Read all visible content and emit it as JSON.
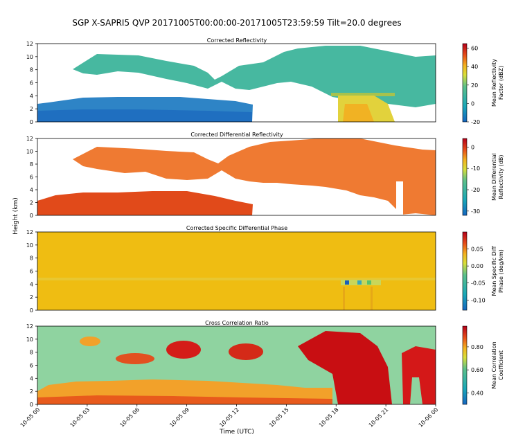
{
  "figure": {
    "title": "SGP X-SAPRI5 QVP 20171005T00:00:00-20171005T23:59:59 Tilt=20.0 degrees",
    "ylabel": "Height (km)",
    "xlabel": "Time (UTC)",
    "x_ticks": [
      "10-05 00",
      "10-05 03",
      "10-05 06",
      "10-05 09",
      "10-05 12",
      "10-05 15",
      "10-05 18",
      "10-05 21",
      "10-06 00"
    ]
  },
  "chart_data": [
    {
      "type": "heatmap",
      "title": "Corrected Reflectivity",
      "xlabel": "",
      "ylabel": "Height (km)",
      "xlim": [
        "2017-10-05T00:00",
        "2017-10-06T00:00"
      ],
      "ylim": [
        0,
        12
      ],
      "y_ticks": [
        0,
        2,
        4,
        6,
        8,
        10,
        12
      ],
      "grid": false,
      "colorbar": {
        "label": "Mean Reflectivity Factor (dBZ)",
        "range": [
          -20,
          65
        ],
        "ticks": [
          -20,
          0,
          20,
          40,
          60
        ]
      },
      "features": [
        {
          "desc": "low boundary layer echo",
          "time_start_h": 0,
          "time_end_h": 13,
          "height_km": [
            0,
            3.8
          ],
          "value_dBZ": -5
        },
        {
          "desc": "mid-level cloud layer",
          "time_start_h": 2.5,
          "time_end_h": 24,
          "height_km": [
            6,
            11
          ],
          "value_dBZ": 5
        },
        {
          "desc": "precipitation core with bright band",
          "time_start_h": 17.5,
          "time_end_h": 20.5,
          "height_km": [
            0,
            12
          ],
          "value_dBZ": 30,
          "bright_band_km": 4.2
        }
      ]
    },
    {
      "type": "heatmap",
      "title": "Corrected Differential Reflectivity",
      "xlabel": "",
      "ylabel": "Height (km)",
      "xlim": [
        "2017-10-05T00:00",
        "2017-10-06T00:00"
      ],
      "ylim": [
        0,
        12
      ],
      "y_ticks": [
        0,
        2,
        4,
        6,
        8,
        10,
        12
      ],
      "grid": false,
      "colorbar": {
        "label": "Mean Differential Reflectivity (dB)",
        "range": [
          -32,
          4
        ],
        "ticks": [
          -30,
          -20,
          -10,
          0
        ]
      },
      "features": [
        {
          "desc": "low layer",
          "time_start_h": 0,
          "time_end_h": 13,
          "height_km": [
            0,
            3.8
          ],
          "value_dB": 1
        },
        {
          "desc": "upper cloud",
          "time_start_h": 2.5,
          "time_end_h": 24,
          "height_km": [
            6,
            11
          ],
          "value_dB": -2
        }
      ]
    },
    {
      "type": "heatmap",
      "title": "Corrected Specific Differential Phase",
      "xlabel": "",
      "ylabel": "Height (km)",
      "xlim": [
        "2017-10-05T00:00",
        "2017-10-06T00:00"
      ],
      "ylim": [
        0,
        12
      ],
      "y_ticks": [
        0,
        2,
        4,
        6,
        8,
        10,
        12
      ],
      "grid": false,
      "colorbar": {
        "label": "Mean Specific Diff Phase (deg/km)",
        "range": [
          -0.13,
          0.1
        ],
        "ticks": [
          -0.1,
          -0.05,
          0.0,
          0.05
        ]
      },
      "features": [
        {
          "desc": "near-zero background",
          "time_start_h": 0,
          "time_end_h": 24,
          "height_km": [
            0,
            12
          ],
          "value": 0.0
        },
        {
          "desc": "melting layer anomaly",
          "time_start_h": 17.8,
          "time_end_h": 20.2,
          "height_km": [
            4.0,
            4.6
          ],
          "value": -0.1
        }
      ]
    },
    {
      "type": "heatmap",
      "title": "Cross Correlation Ratio",
      "xlabel": "Time (UTC)",
      "ylabel": "Height (km)",
      "xlim": [
        "2017-10-05T00:00",
        "2017-10-06T00:00"
      ],
      "ylim": [
        0,
        12
      ],
      "y_ticks": [
        0,
        2,
        4,
        6,
        8,
        10,
        12
      ],
      "grid": false,
      "colorbar": {
        "label": "Mean Correlation Coefficient",
        "range": [
          0.3,
          0.98
        ],
        "ticks": [
          0.4,
          0.6,
          0.8
        ]
      },
      "features": [
        {
          "desc": "background",
          "time_start_h": 0,
          "time_end_h": 24,
          "height_km": [
            0,
            12
          ],
          "value": 0.6
        },
        {
          "desc": "low layer high rho",
          "time_start_h": 0,
          "time_end_h": 18,
          "height_km": [
            0,
            3.6
          ],
          "value": 0.85
        },
        {
          "desc": "precip column",
          "time_start_h": 16,
          "time_end_h": 21,
          "height_km": [
            0,
            11
          ],
          "value": 0.95
        }
      ]
    }
  ]
}
